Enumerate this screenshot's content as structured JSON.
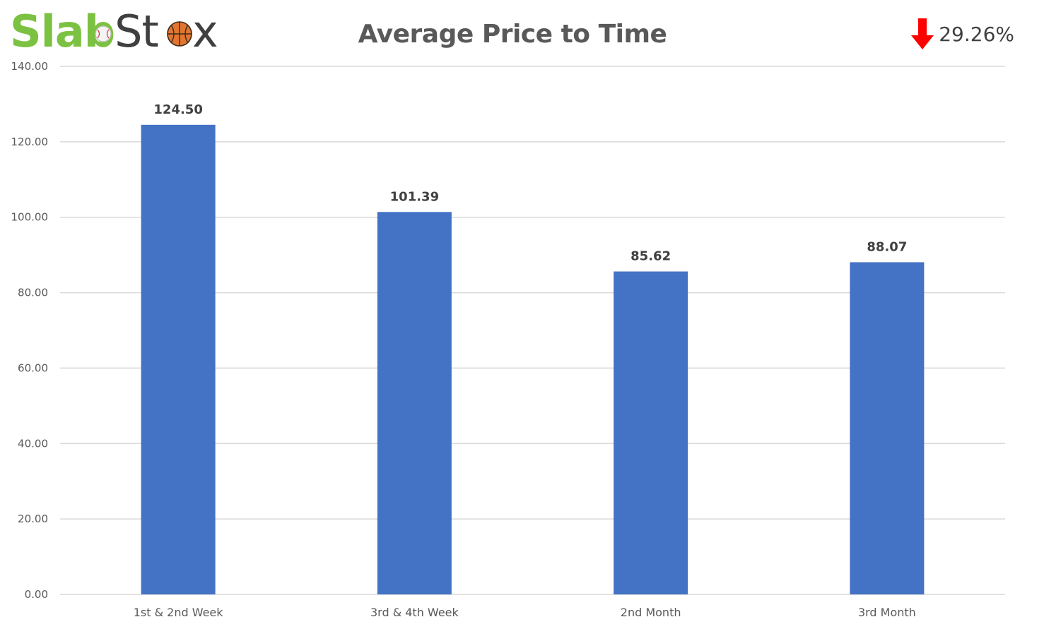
{
  "logo": {
    "part1": "Slab",
    "part2_a": "St",
    "part2_b": "x",
    "part1_color": "#7cc242",
    "part2_color": "#404040",
    "icons": [
      "baseball-icon",
      "basketball-icon"
    ]
  },
  "change": {
    "value": "29.26%",
    "direction": "down",
    "arrow_color": "#ff0000",
    "icon": "down-arrow-icon"
  },
  "colors": {
    "bar": "#4472c4",
    "grid": "#d9d9d9",
    "title": "#595959"
  },
  "chart_data": {
    "type": "bar",
    "title": "Average Price to Time",
    "xlabel": "",
    "ylabel": "",
    "categories": [
      "1st & 2nd Week",
      "3rd & 4th Week",
      "2nd Month",
      "3rd Month"
    ],
    "values": [
      124.5,
      101.39,
      85.62,
      88.07
    ],
    "value_labels": [
      "124.50",
      "101.39",
      "85.62",
      "88.07"
    ],
    "ylim": [
      0,
      140
    ],
    "yticks": [
      0,
      20,
      40,
      60,
      80,
      100,
      120,
      140
    ],
    "ytick_labels": [
      "0.00",
      "20.00",
      "40.00",
      "60.00",
      "80.00",
      "100.00",
      "120.00",
      "140.00"
    ],
    "grid": true,
    "legend": "none"
  }
}
